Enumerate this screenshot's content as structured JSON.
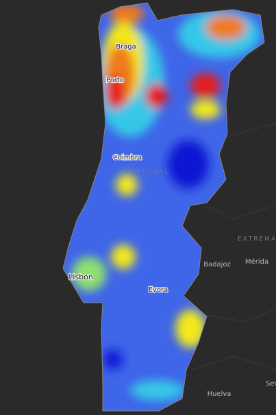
{
  "map": {
    "labels": [
      "Braga",
      "Porto",
      "Coimbra",
      "PORTUGAL",
      "Lisbon",
      "Evora",
      "Badajoz",
      "Mérida",
      "EXTREMA",
      "Huelva",
      "Sev"
    ]
  }
}
